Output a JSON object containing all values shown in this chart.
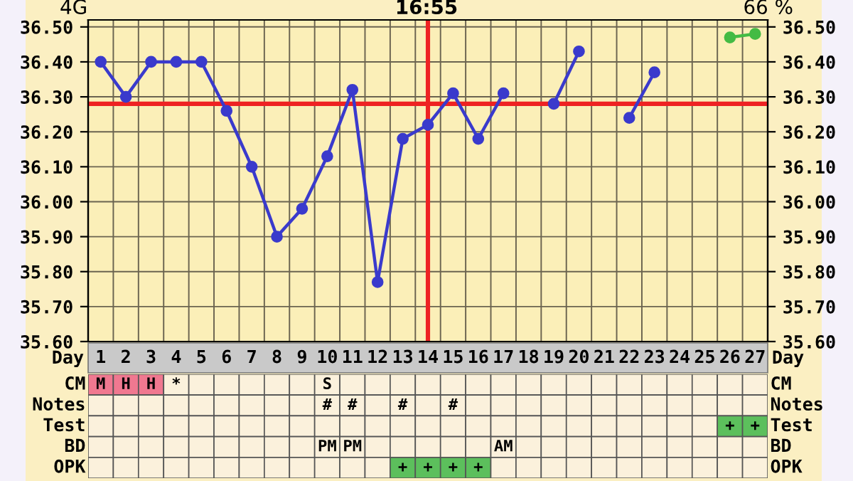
{
  "chart_data": [
    {
      "type": "line",
      "xlabel": "Day",
      "categories": [
        "1",
        "2",
        "3",
        "4",
        "5",
        "6",
        "7",
        "8",
        "9",
        "10",
        "11",
        "12",
        "13",
        "14",
        "15",
        "16",
        "17",
        "18",
        "19",
        "20",
        "21",
        "22",
        "23",
        "24",
        "25",
        "26",
        "27"
      ],
      "series": [
        {
          "color": "#3a3acc",
          "values": [
            36.4,
            36.3,
            36.4,
            36.4,
            36.4,
            36.26,
            36.1,
            35.9,
            35.98,
            36.13,
            36.32,
            35.77,
            36.18,
            36.22,
            36.31,
            36.18,
            36.31,
            null,
            36.28,
            36.43,
            null,
            36.24,
            36.37,
            null,
            null,
            null,
            null
          ]
        },
        {
          "color": "#44bb44",
          "values": [
            null,
            null,
            null,
            null,
            null,
            null,
            null,
            null,
            null,
            null,
            null,
            null,
            null,
            null,
            null,
            null,
            null,
            null,
            null,
            null,
            null,
            null,
            null,
            null,
            null,
            36.47,
            36.48
          ]
        }
      ],
      "marker": "circle",
      "line_style": "solid",
      "grid": true,
      "ylim": [
        35.6,
        36.52
      ],
      "yticks": [
        {
          "value": 35.6,
          "label": "35.60"
        },
        {
          "value": 35.7,
          "label": "35.70"
        },
        {
          "value": 35.8,
          "label": "35.80"
        },
        {
          "value": 35.9,
          "label": "35.90"
        },
        {
          "value": 36.0,
          "label": "36.00"
        },
        {
          "value": 36.1,
          "label": "36.10"
        },
        {
          "value": 36.2,
          "label": "36.20"
        },
        {
          "value": 36.3,
          "label": "36.30"
        },
        {
          "value": 36.4,
          "label": "36.40"
        },
        {
          "value": 36.5,
          "label": "36.50"
        }
      ],
      "y2lim": [
        35.6,
        36.52
      ],
      "y2ticks": [
        {
          "value": 35.6,
          "label": "35.60"
        },
        {
          "value": 35.7,
          "label": "35.70"
        },
        {
          "value": 35.8,
          "label": "35.80"
        },
        {
          "value": 35.9,
          "label": "35.90"
        },
        {
          "value": 36.0,
          "label": "36.00"
        },
        {
          "value": 36.1,
          "label": "36.10"
        },
        {
          "value": 36.2,
          "label": "36.20"
        },
        {
          "value": 36.3,
          "label": "36.30"
        },
        {
          "value": 36.4,
          "label": "36.40"
        },
        {
          "value": 36.5,
          "label": "36.50"
        }
      ],
      "ref_lines": [
        {
          "axis": "y",
          "value": 36.28,
          "color": "#ee2222"
        },
        {
          "axis": "x",
          "value": "14",
          "color": "#ee2222"
        }
      ],
      "annotations": [
        "4G",
        "16:55",
        "66 %"
      ]
    },
    {
      "type": "other",
      "y_categories": [
        "CM",
        "Notes",
        "Test",
        "BD",
        "OPK"
      ],
      "y2_categories": [
        "CM",
        "Notes",
        "Test",
        "BD",
        "OPK"
      ],
      "cell_labels": [
        [
          "M",
          "H",
          "H",
          "*",
          null,
          null,
          null,
          null,
          null,
          "S",
          null,
          null,
          null,
          null,
          null,
          null,
          null,
          null,
          null,
          null,
          null,
          null,
          null,
          null,
          null,
          null,
          null
        ],
        [
          null,
          null,
          null,
          null,
          null,
          null,
          null,
          null,
          null,
          "#",
          "#",
          null,
          "#",
          null,
          "#",
          null,
          null,
          null,
          null,
          null,
          null,
          null,
          null,
          null,
          null,
          null,
          null
        ],
        [
          null,
          null,
          null,
          null,
          null,
          null,
          null,
          null,
          null,
          null,
          null,
          null,
          null,
          null,
          null,
          null,
          null,
          null,
          null,
          null,
          null,
          null,
          null,
          null,
          null,
          "+",
          "+"
        ],
        [
          null,
          null,
          null,
          null,
          null,
          null,
          null,
          null,
          null,
          "PM",
          "PM",
          null,
          null,
          null,
          null,
          null,
          "AM",
          null,
          null,
          null,
          null,
          null,
          null,
          null,
          null,
          null,
          null
        ],
        [
          null,
          null,
          null,
          null,
          null,
          null,
          null,
          null,
          null,
          null,
          null,
          null,
          "+",
          "+",
          "+",
          "+",
          null,
          null,
          null,
          null,
          null,
          null,
          null,
          null,
          null,
          null,
          null
        ]
      ],
      "colors": [
        [
          "#f07890",
          "#f07890",
          "#f07890",
          null,
          null,
          null,
          null,
          null,
          null,
          null,
          null,
          null,
          null,
          null,
          null,
          null,
          null,
          null,
          null,
          null,
          null,
          null,
          null,
          null,
          null,
          null,
          null
        ],
        [
          null,
          null,
          null,
          null,
          null,
          null,
          null,
          null,
          null,
          null,
          null,
          null,
          null,
          null,
          null,
          null,
          null,
          null,
          null,
          null,
          null,
          null,
          null,
          null,
          null,
          null,
          null
        ],
        [
          null,
          null,
          null,
          null,
          null,
          null,
          null,
          null,
          null,
          null,
          null,
          null,
          null,
          null,
          null,
          null,
          null,
          null,
          null,
          null,
          null,
          null,
          null,
          null,
          null,
          "#5cbf5c",
          "#5cbf5c"
        ],
        [
          null,
          null,
          null,
          null,
          null,
          null,
          null,
          null,
          null,
          null,
          null,
          null,
          null,
          null,
          null,
          null,
          null,
          null,
          null,
          null,
          null,
          null,
          null,
          null,
          null,
          null,
          null
        ],
        [
          null,
          null,
          null,
          null,
          null,
          null,
          null,
          null,
          null,
          null,
          null,
          null,
          "#5cbf5c",
          "#5cbf5c",
          "#5cbf5c",
          "#5cbf5c",
          null,
          null,
          null,
          null,
          null,
          null,
          null,
          null,
          null,
          null,
          null
        ]
      ]
    }
  ]
}
